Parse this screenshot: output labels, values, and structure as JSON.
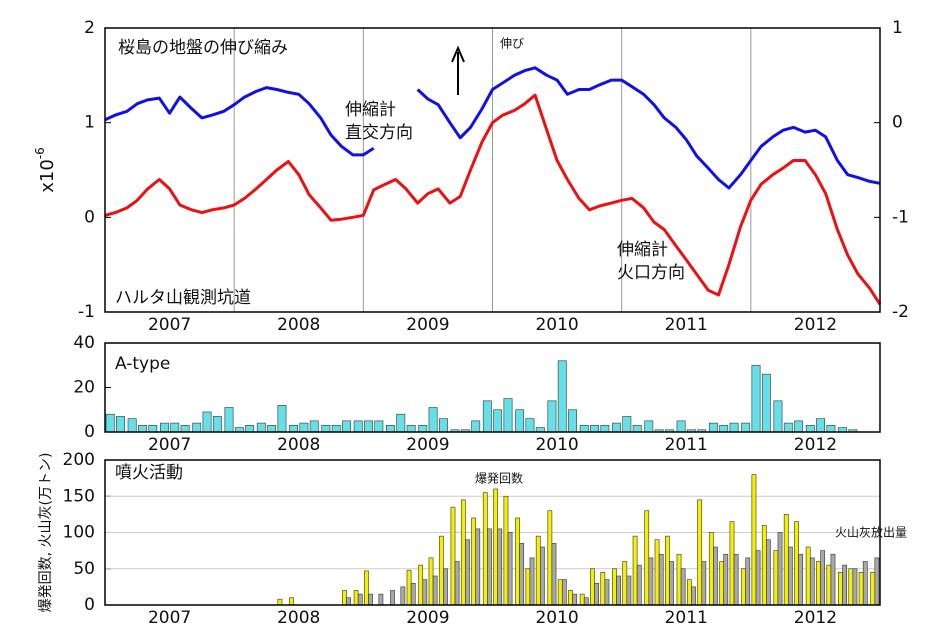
{
  "chart_data": [
    {
      "type": "line",
      "title": "桜島の地盤の伸び縮み",
      "ylabel_base": "x10",
      "ylabel_exponent": "-6",
      "annotations": [
        {
          "text": [
            "ハルタ山観測坑道"
          ]
        },
        {
          "text": [
            "伸縮計",
            "直交方向"
          ]
        },
        {
          "text": [
            "伸縮計",
            "火口方向"
          ]
        },
        {
          "text": [
            "伸び"
          ]
        }
      ],
      "xlim": [
        2007,
        2013
      ],
      "xticks": [
        {
          "value": 2007.5,
          "label": "2007"
        },
        {
          "value": 2008.5,
          "label": "2008"
        },
        {
          "value": 2009.5,
          "label": "2009"
        },
        {
          "value": 2010.5,
          "label": "2010"
        },
        {
          "value": 2011.5,
          "label": "2011"
        },
        {
          "value": 2012.5,
          "label": "2012"
        }
      ],
      "xgrid": [
        2008,
        2009,
        2010,
        2011,
        2012
      ],
      "ylim": [
        -1,
        2
      ],
      "yticks": [
        -1,
        0,
        1,
        2
      ],
      "y2lim": [
        -2,
        1
      ],
      "y2ticks": [
        -2,
        -1,
        0,
        1
      ],
      "x": [
        2007,
        2007.08,
        2007.17,
        2007.25,
        2007.33,
        2007.42,
        2007.5,
        2007.58,
        2007.67,
        2007.75,
        2007.83,
        2007.92,
        2008,
        2008.08,
        2008.17,
        2008.25,
        2008.33,
        2008.42,
        2008.5,
        2008.58,
        2008.67,
        2008.75,
        2008.83,
        2008.92,
        2009,
        2009.08,
        2009.17,
        2009.25,
        2009.33,
        2009.42,
        2009.5,
        2009.58,
        2009.67,
        2009.75,
        2009.83,
        2009.92,
        2010,
        2010.08,
        2010.17,
        2010.25,
        2010.33,
        2010.42,
        2010.5,
        2010.58,
        2010.67,
        2010.75,
        2010.83,
        2010.92,
        2011,
        2011.08,
        2011.17,
        2011.25,
        2011.33,
        2011.42,
        2011.5,
        2011.58,
        2011.67,
        2011.75,
        2011.83,
        2011.92,
        2012,
        2012.08,
        2012.17,
        2012.25,
        2012.33,
        2012.42,
        2012.5,
        2012.58,
        2012.67,
        2012.75,
        2012.83,
        2012.92,
        2013
      ],
      "series": [
        {
          "color": "#1010ee",
          "values": [
            1.03,
            1.08,
            1.12,
            1.2,
            1.24,
            1.26,
            1.1,
            1.27,
            1.15,
            1.05,
            1.08,
            1.12,
            1.19,
            1.27,
            1.33,
            1.37,
            1.35,
            1.32,
            1.3,
            1.2,
            1.05,
            0.87,
            0.75,
            0.66,
            0.66,
            0.73,
            null,
            null,
            null,
            1.35,
            1.25,
            1.19,
            1.0,
            0.84,
            0.95,
            1.15,
            1.35,
            1.42,
            1.5,
            1.55,
            1.58,
            1.5,
            1.45,
            1.3,
            1.35,
            1.35,
            1.4,
            1.45,
            1.45,
            1.38,
            1.3,
            1.19,
            1.05,
            0.95,
            0.82,
            0.65,
            0.52,
            0.4,
            0.31,
            0.45,
            0.6,
            0.75,
            0.85,
            0.92,
            0.95,
            0.9,
            0.92,
            0.85,
            0.6,
            0.45,
            0.42,
            0.38,
            0.36
          ]
        },
        {
          "color": "#ee1010",
          "values": [
            0.02,
            0.05,
            0.1,
            0.18,
            0.3,
            0.4,
            0.3,
            0.13,
            0.08,
            0.05,
            0.08,
            0.1,
            0.13,
            0.2,
            0.3,
            0.4,
            0.5,
            0.59,
            0.45,
            0.24,
            0.1,
            -0.03,
            -0.02,
            0.0,
            0.02,
            0.29,
            0.35,
            0.4,
            0.3,
            0.15,
            0.25,
            0.3,
            0.15,
            0.22,
            0.5,
            0.8,
            1.0,
            1.08,
            1.13,
            1.2,
            1.29,
            0.92,
            0.6,
            0.4,
            0.2,
            0.08,
            0.12,
            0.15,
            0.18,
            0.2,
            0.1,
            -0.05,
            -0.13,
            -0.3,
            -0.45,
            -0.6,
            -0.77,
            -0.82,
            -0.5,
            -0.1,
            0.18,
            0.35,
            0.45,
            0.52,
            0.6,
            0.6,
            0.45,
            0.25,
            -0.13,
            -0.4,
            -0.6,
            -0.75,
            -0.92
          ]
        }
      ]
    },
    {
      "type": "bar",
      "title": "A-type",
      "xlim": [
        2007,
        2013
      ],
      "xticks": [
        {
          "value": 2007.5,
          "label": "2007"
        },
        {
          "value": 2008.5,
          "label": "2008"
        },
        {
          "value": 2009.5,
          "label": "2009"
        },
        {
          "value": 2010.5,
          "label": "2010"
        },
        {
          "value": 2011.5,
          "label": "2011"
        },
        {
          "value": 2012.5,
          "label": "2012"
        }
      ],
      "ylim": [
        0,
        40
      ],
      "yticks": [
        0,
        20,
        40
      ],
      "x": [
        2007,
        2007.08,
        2007.17,
        2007.25,
        2007.33,
        2007.42,
        2007.5,
        2007.58,
        2007.67,
        2007.75,
        2007.83,
        2007.92,
        2008,
        2008.08,
        2008.17,
        2008.25,
        2008.33,
        2008.42,
        2008.5,
        2008.58,
        2008.67,
        2008.75,
        2008.83,
        2008.92,
        2009,
        2009.08,
        2009.17,
        2009.25,
        2009.33,
        2009.42,
        2009.5,
        2009.58,
        2009.67,
        2009.75,
        2009.83,
        2009.92,
        2010,
        2010.08,
        2010.17,
        2010.25,
        2010.33,
        2010.42,
        2010.5,
        2010.58,
        2010.67,
        2010.75,
        2010.83,
        2010.92,
        2011,
        2011.08,
        2011.17,
        2011.25,
        2011.33,
        2011.42,
        2011.5,
        2011.58,
        2011.67,
        2011.75,
        2011.83,
        2011.92,
        2012,
        2012.08,
        2012.17,
        2012.25,
        2012.33,
        2012.42,
        2012.5,
        2012.58,
        2012.67,
        2012.75,
        2012.83,
        2012.92
      ],
      "series": [
        {
          "color": "#66e0e8",
          "values": [
            8,
            7,
            6,
            3,
            3,
            4,
            4,
            3,
            4,
            9,
            7,
            11,
            2,
            3,
            4,
            3,
            12,
            3,
            4,
            5,
            3,
            3,
            5,
            5,
            5,
            5,
            3,
            8,
            3,
            3,
            11,
            6,
            1,
            1,
            5,
            14,
            10,
            15,
            10,
            6,
            2,
            14,
            32,
            10,
            3,
            3,
            3,
            4,
            7,
            3,
            5,
            1,
            1,
            5,
            1,
            1,
            4,
            3,
            4,
            4,
            30,
            26,
            14,
            4,
            5,
            3,
            6,
            3,
            2,
            1,
            0,
            0
          ]
        }
      ]
    },
    {
      "type": "bar",
      "title": "噴火活動",
      "ylabel": "爆発回数, 火山灰(万トン)",
      "xlim": [
        2007,
        2013
      ],
      "xticks": [
        {
          "value": 2007.5,
          "label": "2007"
        },
        {
          "value": 2008.5,
          "label": "2008"
        },
        {
          "value": 2009.5,
          "label": "2009"
        },
        {
          "value": 2010.5,
          "label": "2010"
        },
        {
          "value": 2011.5,
          "label": "2011"
        },
        {
          "value": 2012.5,
          "label": "2012"
        }
      ],
      "ylim": [
        0,
        200
      ],
      "yticks": [
        0,
        50,
        100,
        150,
        200
      ],
      "grid": true,
      "x": [
        2007,
        2007.08,
        2007.17,
        2007.25,
        2007.33,
        2007.42,
        2007.5,
        2007.58,
        2007.67,
        2007.75,
        2007.83,
        2007.92,
        2008,
        2008.08,
        2008.17,
        2008.25,
        2008.33,
        2008.42,
        2008.5,
        2008.58,
        2008.67,
        2008.75,
        2008.83,
        2008.92,
        2009,
        2009.08,
        2009.17,
        2009.25,
        2009.33,
        2009.42,
        2009.5,
        2009.58,
        2009.67,
        2009.75,
        2009.83,
        2009.92,
        2010,
        2010.08,
        2010.17,
        2010.25,
        2010.33,
        2010.42,
        2010.5,
        2010.58,
        2010.67,
        2010.75,
        2010.83,
        2010.92,
        2011,
        2011.08,
        2011.17,
        2011.25,
        2011.33,
        2011.42,
        2011.5,
        2011.58,
        2011.67,
        2011.75,
        2011.83,
        2011.92,
        2012,
        2012.08,
        2012.17,
        2012.25,
        2012.33,
        2012.42,
        2012.5,
        2012.58,
        2012.67,
        2012.75,
        2012.83,
        2012.92
      ],
      "series": [
        {
          "name": "爆発回数",
          "color": "#f4f000",
          "values": [
            0,
            0,
            0,
            0,
            0,
            0,
            0,
            0,
            0,
            0,
            0,
            0,
            0,
            0,
            0,
            0,
            8,
            10,
            0,
            0,
            0,
            0,
            20,
            20,
            47,
            0,
            0,
            0,
            48,
            55,
            65,
            95,
            135,
            145,
            120,
            155,
            160,
            150,
            120,
            50,
            95,
            130,
            35,
            20,
            15,
            50,
            45,
            50,
            60,
            95,
            130,
            90,
            95,
            70,
            35,
            145,
            100,
            60,
            115,
            50,
            180,
            110,
            75,
            125,
            115,
            80,
            60,
            55,
            45,
            50,
            45,
            45
          ]
        },
        {
          "name": "火山灰放出量",
          "color": "#a8a8a8",
          "values": [
            0,
            0,
            0,
            0,
            0,
            0,
            0,
            0,
            0,
            0,
            0,
            0,
            0,
            0,
            0,
            0,
            0,
            0,
            0,
            0,
            0,
            0,
            10,
            15,
            15,
            15,
            20,
            25,
            30,
            35,
            40,
            50,
            60,
            90,
            105,
            105,
            105,
            100,
            85,
            65,
            80,
            85,
            35,
            15,
            10,
            30,
            35,
            40,
            40,
            55,
            65,
            70,
            60,
            50,
            25,
            60,
            80,
            70,
            70,
            65,
            75,
            90,
            100,
            80,
            70,
            65,
            75,
            70,
            55,
            50,
            60,
            65
          ]
        }
      ]
    }
  ]
}
